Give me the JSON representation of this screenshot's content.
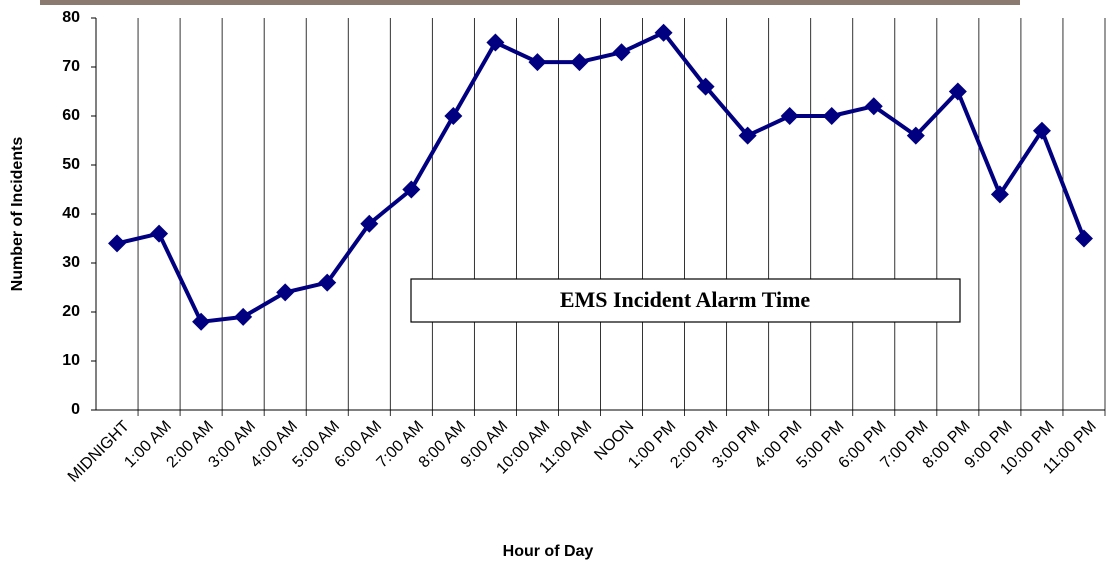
{
  "chart_data": {
    "type": "line",
    "title": "EMS Incident Alarm Time",
    "x_label": "Hour of Day",
    "y_label": "Number of Incidents",
    "categories": [
      "MIDNIGHT",
      "1:00 AM",
      "2:00 AM",
      "3:00 AM",
      "4:00 AM",
      "5:00 AM",
      "6:00 AM",
      "7:00 AM",
      "8:00 AM",
      "9:00 AM",
      "10:00 AM",
      "11:00 AM",
      "NOON",
      "1:00 PM",
      "2:00 PM",
      "3:00 PM",
      "4:00 PM",
      "5:00 PM",
      "6:00 PM",
      "7:00 PM",
      "8:00 PM",
      "9:00 PM",
      "10:00 PM",
      "11:00 PM"
    ],
    "values": [
      34,
      36,
      18,
      19,
      24,
      26,
      38,
      45,
      60,
      75,
      71,
      71,
      73,
      77,
      66,
      56,
      60,
      60,
      62,
      56,
      65,
      44,
      57,
      35
    ],
    "color": "#000080",
    "ylim": [
      0,
      80
    ],
    "yticks": [
      0,
      10,
      20,
      30,
      40,
      50,
      60,
      70,
      80
    ],
    "grid": true
  }
}
